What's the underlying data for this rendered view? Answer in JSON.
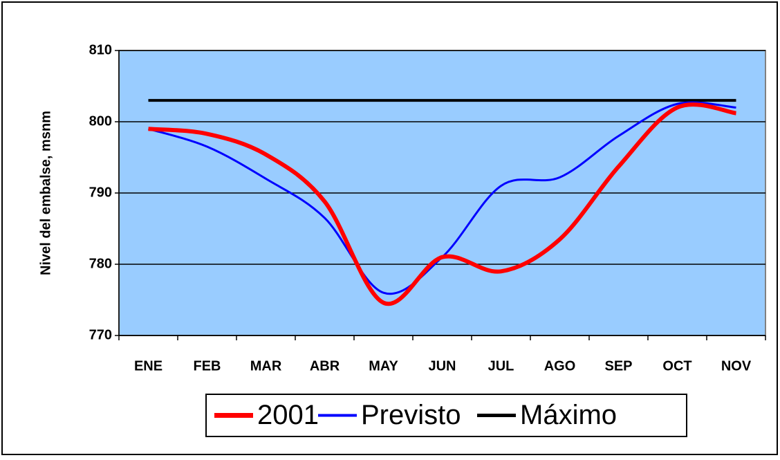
{
  "chart_data": {
    "type": "line",
    "y_label": "Nivel del embalse, msnm",
    "categories": [
      "ENE",
      "FEB",
      "MAR",
      "ABR",
      "MAY",
      "JUN",
      "JUL",
      "AGO",
      "SEP",
      "OCT",
      "NOV"
    ],
    "series": [
      {
        "name": "2001",
        "color": "#ff0000",
        "width": 6,
        "values": [
          799,
          798.3,
          795.4,
          788.8,
          774.6,
          781,
          779,
          783.5,
          793.7,
          802,
          801.2
        ]
      },
      {
        "name": "Previsto",
        "color": "#0000ff",
        "width": 3,
        "values": [
          799,
          796.5,
          792,
          786.5,
          776,
          781,
          791,
          792.2,
          798,
          802.5,
          802
        ]
      },
      {
        "name": "Máximo",
        "color": "#000000",
        "width": 4,
        "values": [
          803,
          803,
          803,
          803,
          803,
          803,
          803,
          803,
          803,
          803,
          803
        ]
      }
    ],
    "ylim": [
      770,
      810
    ],
    "yticks": [
      770,
      780,
      790,
      800,
      810
    ],
    "grid": true,
    "smooth": true,
    "plot_background": "#99ccff",
    "legend": "bottom"
  }
}
